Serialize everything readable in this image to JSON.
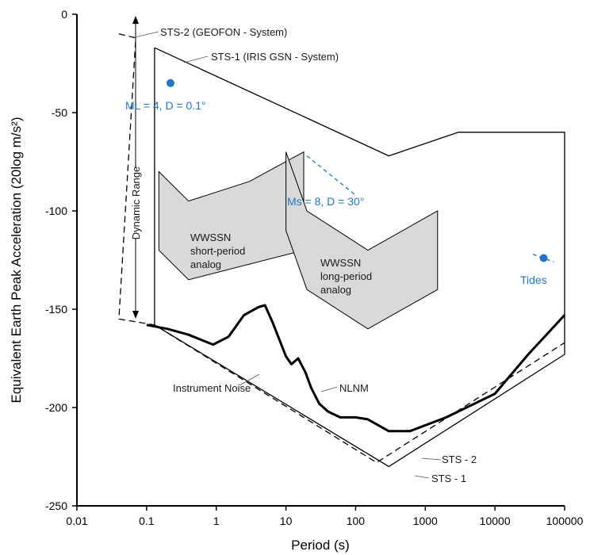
{
  "chart_data": {
    "type": "line",
    "xscale": "log",
    "xlabel": "Period (s)",
    "ylabel": "Equivalent Earth Peak Acceleration (20log m/s²)",
    "xlim": [
      0.01,
      100000
    ],
    "ylim": [
      -250,
      0
    ],
    "x_ticks": [
      "0.01",
      "0.1",
      "1",
      "10",
      "100",
      "1000",
      "10000",
      "100000"
    ],
    "y_ticks": [
      "0",
      "-50",
      "-100",
      "-150",
      "-200",
      "-250"
    ],
    "grid": false,
    "series": [
      {
        "name": "NLNM",
        "style": "thick-solid",
        "color": "#000000",
        "points": [
          [
            0.1,
            -158
          ],
          [
            0.2,
            -160
          ],
          [
            0.4,
            -163
          ],
          [
            0.9,
            -168
          ],
          [
            1.5,
            -164
          ],
          [
            2.5,
            -153
          ],
          [
            4,
            -149
          ],
          [
            5,
            -148
          ],
          [
            6.5,
            -157
          ],
          [
            10,
            -174
          ],
          [
            12,
            -178
          ],
          [
            15,
            -175
          ],
          [
            19,
            -182
          ],
          [
            23,
            -190
          ],
          [
            30,
            -198
          ],
          [
            40,
            -202
          ],
          [
            60,
            -205
          ],
          [
            100,
            -205
          ],
          [
            150,
            -206
          ],
          [
            300,
            -212
          ],
          [
            600,
            -212
          ],
          [
            2000,
            -205
          ],
          [
            10000,
            -193
          ],
          [
            30000,
            -173
          ],
          [
            100000,
            -153
          ]
        ]
      },
      {
        "name": "STS-2 (GEOFON - System)",
        "style": "dashed",
        "color": "#000000",
        "points": [
          [
            0.04,
            -10
          ],
          [
            0.07,
            -12
          ],
          [
            0.04,
            -155
          ],
          [
            0.13,
            -158
          ],
          [
            200,
            -228
          ],
          [
            100000,
            -167
          ]
        ]
      },
      {
        "name": "STS-1 (IRIS GSN - System)",
        "style": "thin-solid",
        "color": "#000000",
        "points": [
          [
            0.13,
            -17
          ],
          [
            0.13,
            -158
          ],
          [
            300,
            -230
          ],
          [
            100000,
            -173
          ],
          [
            100000,
            -60
          ],
          [
            3000,
            -60
          ],
          [
            300,
            -72
          ],
          [
            0.13,
            -17
          ]
        ]
      }
    ],
    "regions": [
      {
        "name": "WWSSN short-period analog",
        "label": "WWSSN\nshort-period\nanalog",
        "fill": "#d9d9d9",
        "points": [
          [
            0.15,
            -80
          ],
          [
            0.4,
            -95
          ],
          [
            3,
            -85
          ],
          [
            18,
            -70
          ],
          [
            18,
            -120
          ],
          [
            0.4,
            -135
          ],
          [
            0.15,
            -120
          ]
        ]
      },
      {
        "name": "WWSSN long-period analog",
        "label": "WWSSN\nlong-period\nanalog",
        "fill": "#d9d9d9",
        "points": [
          [
            10,
            -70
          ],
          [
            20,
            -100
          ],
          [
            150,
            -120
          ],
          [
            1500,
            -100
          ],
          [
            1500,
            -140
          ],
          [
            150,
            -160
          ],
          [
            20,
            -140
          ],
          [
            10,
            -110
          ]
        ]
      }
    ],
    "events": [
      {
        "label": "ML = 4, D = 0.1°",
        "x": 0.22,
        "y": -35,
        "color": "#1f77c8"
      },
      {
        "label": "Ms = 8, D = 30°",
        "line": [
          [
            20,
            -72
          ],
          [
            100,
            -92
          ]
        ],
        "color": "#1f77c8"
      },
      {
        "label": "Tides",
        "x": 50000,
        "y": -124,
        "line": [
          [
            35000,
            -122
          ],
          [
            70000,
            -126
          ]
        ],
        "color": "#1f77c8"
      }
    ],
    "annotations": [
      {
        "text": "STS-2 (GEOFON - System)",
        "target": "STS-2 upper corner"
      },
      {
        "text": "STS-1 (IRIS GSN - System)",
        "target": "STS-1 upper edge"
      },
      {
        "text": "Dynamic Range",
        "target": "double-arrow between STS-2 bounds"
      },
      {
        "text": "NLNM",
        "target": "NLNM curve"
      },
      {
        "text": "Instrument Noise",
        "target": "lower instrument noise lines"
      },
      {
        "text": "STS - 2",
        "target": "STS-2 lower noise line"
      },
      {
        "text": "STS - 1",
        "target": "STS-1 lower noise line"
      }
    ]
  },
  "labels": {
    "sts2_top": "STS-2 (GEOFON - System)",
    "sts1_top": "STS-1 (IRIS GSN - System)",
    "dynamic_range": "Dynamic Range",
    "nlnm": "NLNM",
    "instrument_noise": "Instrument Noise",
    "sts2_bottom": "STS - 2",
    "sts1_bottom": "STS - 1",
    "short_period_1": "WWSSN",
    "short_period_2": "short-period",
    "short_period_3": "analog",
    "long_period_1": "WWSSN",
    "long_period_2": "long-period",
    "long_period_3": "analog",
    "ml_event": "ML = 4, D = 0.1°",
    "ms_event": "Ms = 8, D = 30°",
    "tides": "Tides"
  },
  "colors": {
    "event_blue": "#1f77c8",
    "region_fill": "#d9d9d9"
  }
}
